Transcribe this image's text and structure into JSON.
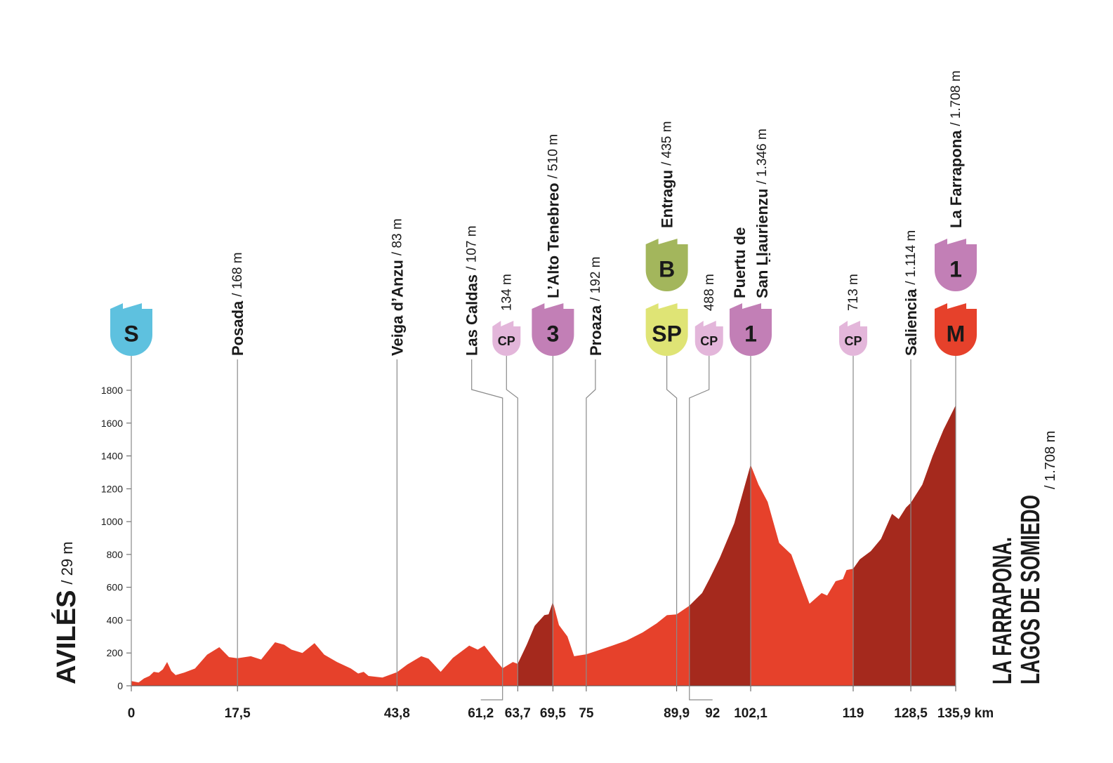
{
  "chart_data": {
    "type": "area",
    "x": [
      0,
      1.2,
      2.1,
      3.0,
      3.7,
      4.5,
      5.2,
      5.9,
      6.6,
      7.3,
      8.7,
      10.5,
      12.5,
      14.5,
      16.1,
      17.5,
      19.7,
      21.4,
      23.7,
      25.2,
      26.4,
      28.2,
      30.2,
      31.8,
      33.9,
      36.2,
      37.4,
      38.3,
      39.1,
      41.4,
      43.8,
      45.5,
      47.8,
      49.0,
      51.0,
      53.0,
      55.7,
      57.1,
      58.2,
      60.0,
      61.2,
      62.9,
      63.7,
      65.2,
      66.5,
      68.1,
      68.8,
      69.5,
      70.5,
      71.9,
      73.0,
      75,
      76.5,
      79.3,
      81.6,
      84.3,
      86.6,
      88.3,
      89.9,
      92,
      94.1,
      95.3,
      97.0,
      99.4,
      102.1,
      103.4,
      104.9,
      106.8,
      108.8,
      110.3,
      111.8,
      113.8,
      114.7,
      116.1,
      117.3,
      117.9,
      119,
      120.1,
      121.9,
      123.6,
      125.4,
      126.5,
      127.7,
      128.5,
      130.4,
      132.1,
      133.9,
      135.9
    ],
    "values": [
      29,
      20,
      45,
      60,
      85,
      80,
      100,
      145,
      90,
      65,
      80,
      105,
      190,
      235,
      175,
      168,
      180,
      160,
      265,
      250,
      220,
      200,
      260,
      190,
      145,
      105,
      75,
      85,
      60,
      50,
      83,
      130,
      180,
      165,
      85,
      170,
      245,
      220,
      245,
      160,
      107,
      145,
      134,
      250,
      365,
      430,
      435,
      510,
      370,
      300,
      180,
      192,
      210,
      245,
      275,
      325,
      380,
      430,
      435,
      488,
      565,
      650,
      778,
      990,
      1346,
      1225,
      1120,
      870,
      800,
      650,
      500,
      565,
      550,
      637,
      650,
      705,
      713,
      770,
      820,
      895,
      1047,
      1015,
      1085,
      1114,
      1225,
      1400,
      1560,
      1708
    ],
    "color": "#e6412b",
    "climb_color": "#a5291d",
    "xlim": [
      0,
      135.9
    ],
    "ylim": [
      0,
      1800
    ],
    "yticks": [
      0,
      200,
      400,
      600,
      800,
      1000,
      1200,
      1400,
      1600,
      1800
    ],
    "xticks": [
      0,
      {
        "value": 17.5,
        "label": "17,5"
      },
      {
        "value": 43.8,
        "label": "43,8"
      },
      {
        "value": 61.2,
        "label": "61,2"
      },
      {
        "value": 63.7,
        "label": "63,7"
      },
      {
        "value": 69.5,
        "label": "69,5"
      },
      75,
      {
        "value": 89.9,
        "label": "89,9"
      },
      92,
      {
        "value": 102.1,
        "label": "102,1"
      },
      119,
      {
        "value": 128.5,
        "label": "128,5"
      },
      {
        "value": 135.9,
        "label": "135,9 km"
      }
    ],
    "waypoints": [
      {
        "name": "AVILÉS",
        "alt": "/ 29 m",
        "icons": [
          {
            "text": "S",
            "color": "#5ec1df",
            "text_color": "#ffffff"
          }
        ]
      },
      {
        "name": "Posada",
        "alt": "/ 168 m"
      },
      {
        "name": "Veiga d’Anzu",
        "alt": "/ 83 m"
      },
      {
        "name": "Las Caldas",
        "alt": "/ 107 m"
      },
      {
        "alt": "134 m",
        "icons": [
          {
            "text": "CP",
            "color": "#e3b6da",
            "text_color": "#3b2a37"
          }
        ]
      },
      {
        "name": "L’Alto Tenebreo",
        "alt": "/ 510 m",
        "icons": [
          {
            "text": "3",
            "color": "#c27fb6",
            "text_color": "#ffffff"
          }
        ]
      },
      {
        "name": "Proaza",
        "alt": "/ 192 m"
      },
      {
        "name": "Entragu",
        "alt": "/ 435 m",
        "icons": [
          {
            "text": "SP",
            "color": "#dfe475",
            "text_color": "#2a2a1a"
          },
          {
            "text": "B",
            "color": "#a3b65c",
            "text_color": "#ffffff"
          }
        ]
      },
      {
        "alt": "488 m",
        "icons": [
          {
            "text": "CP",
            "color": "#e3b6da",
            "text_color": "#3b2a37"
          }
        ]
      },
      {
        "name": [
          "Puertu de",
          "San Ḷḷaurienzu"
        ],
        "alt": "/ 1.346 m",
        "icons": [
          {
            "text": "1",
            "color": "#c27fb6",
            "text_color": "#ffffff"
          }
        ]
      },
      {
        "alt": "713 m",
        "icons": [
          {
            "text": "CP",
            "color": "#e3b6da",
            "text_color": "#3b2a37"
          }
        ]
      },
      {
        "name": "Saliencia",
        "alt": "/ 1.114 m"
      },
      {
        "name": "La Farrapona",
        "alt": "/ 1.708 m",
        "icons": [
          {
            "text": "M",
            "color": "#e6412b",
            "text_color": "#ffffff"
          },
          {
            "text": "1",
            "color": "#c27fb6",
            "text_color": "#ffffff"
          }
        ]
      }
    ],
    "finish": {
      "lines": [
        "LA FARRAPONA.",
        "LAGOS DE SOMIEDO"
      ],
      "alt": "/ 1.708 m"
    }
  }
}
